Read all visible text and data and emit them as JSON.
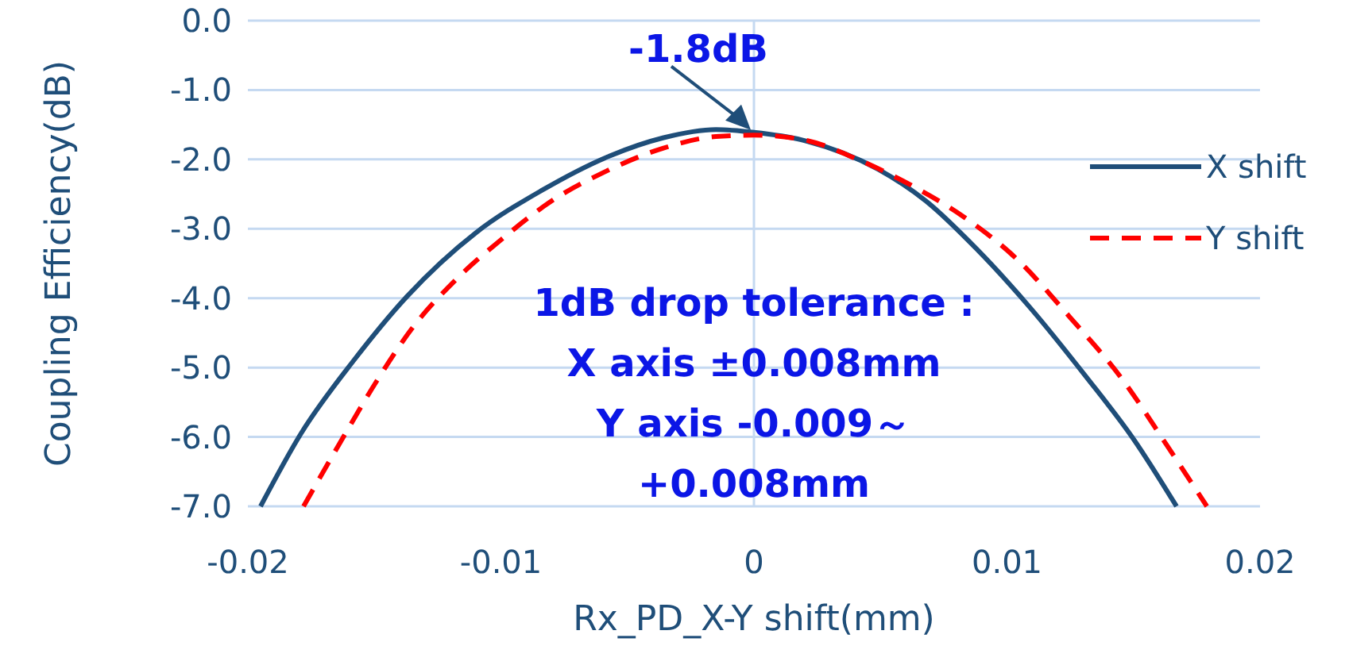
{
  "chart_data": {
    "type": "line",
    "xlabel": "Rx_PD_X-Y shift(mm)",
    "ylabel": "Coupling Efficiency(dB)",
    "xlim": [
      -0.02,
      0.02
    ],
    "xticks": [
      -0.02,
      -0.01,
      0,
      0.01,
      0.02
    ],
    "ylim": [
      -7,
      0
    ],
    "yticks": [
      {
        "value": 0,
        "label": "0.0"
      },
      {
        "value": -1,
        "label": "-1.0"
      },
      {
        "value": -2,
        "label": "-2.0"
      },
      {
        "value": -3,
        "label": "-3.0"
      },
      {
        "value": -4,
        "label": "-4.0"
      },
      {
        "value": -5,
        "label": "-5.0"
      },
      {
        "value": -6,
        "label": "-6.0"
      },
      {
        "value": -7,
        "label": "-7.0"
      }
    ],
    "grid": "y",
    "legend": "right",
    "ref_lines": [
      {
        "axis": "x",
        "value": 0,
        "color": "#c5d9f1"
      }
    ],
    "series": [
      {
        "name": "X shift",
        "color": "#1f4e79",
        "line_style": "solid",
        "x": [
          -0.0195,
          -0.0179,
          -0.0158,
          -0.0137,
          -0.011,
          -0.0084,
          -0.0057,
          -0.0036,
          -0.0015,
          0,
          0.0019,
          0.0049,
          0.0068,
          0.0088,
          0.0109,
          0.0131,
          0.015,
          0.0167
        ],
        "values": [
          -7.0,
          -5.95,
          -4.89,
          -3.97,
          -3.06,
          -2.45,
          -1.95,
          -1.69,
          -1.57,
          -1.61,
          -1.72,
          -2.14,
          -2.6,
          -3.29,
          -4.13,
          -5.12,
          -6.03,
          -7.0
        ]
      },
      {
        "name": "Y shift",
        "color": "#ff0000",
        "line_style": "dashed",
        "x": [
          -0.0178,
          -0.0164,
          -0.0149,
          -0.0135,
          -0.0118,
          -0.0099,
          -0.008,
          -0.0059,
          -0.0036,
          -0.0015,
          0,
          0.002,
          0.0041,
          0.0062,
          0.0083,
          0.0104,
          0.0125,
          0.0146,
          0.0163,
          0.0179
        ],
        "values": [
          -7.0,
          -6.11,
          -5.19,
          -4.43,
          -3.74,
          -3.13,
          -2.6,
          -2.18,
          -1.84,
          -1.67,
          -1.65,
          -1.72,
          -2.0,
          -2.37,
          -2.83,
          -3.44,
          -4.28,
          -5.19,
          -6.11,
          -7.0
        ]
      }
    ],
    "annotations": [
      {
        "text": "-1.8dB",
        "x": 0,
        "y": -1.62
      },
      "1dB drop tolerance :\nX axis ±0.008mm\nY axis -0.009～\n+0.008mm"
    ]
  }
}
